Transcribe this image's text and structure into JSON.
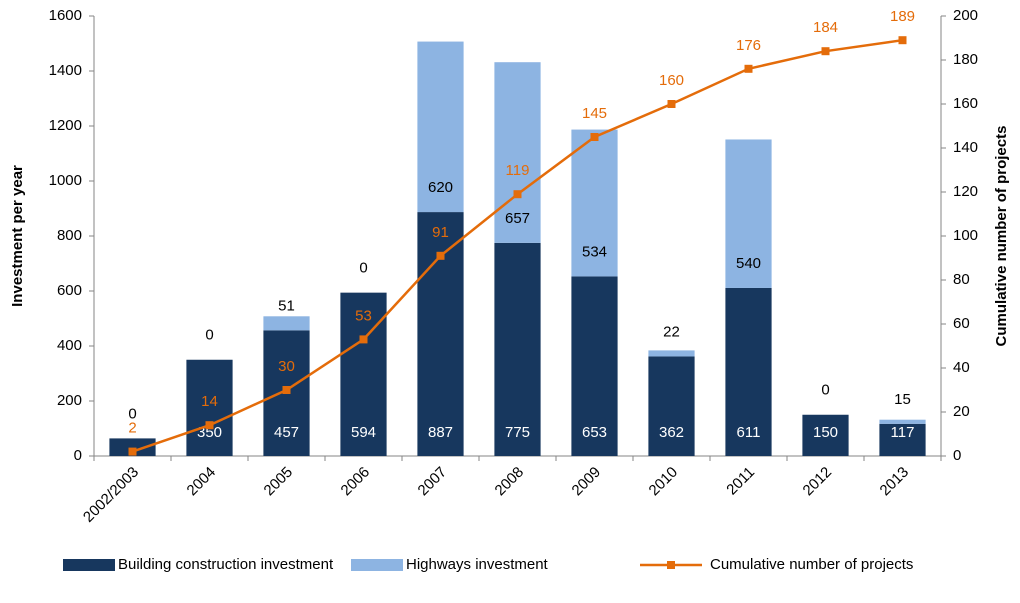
{
  "chart_data": {
    "type": "bar",
    "stacked": true,
    "categories": [
      "2002/2003",
      "2004",
      "2005",
      "2006",
      "2007",
      "2008",
      "2009",
      "2010",
      "2011",
      "2012",
      "2013"
    ],
    "series": [
      {
        "name": "Building construction investment",
        "color": "#17375e",
        "values": [
          64,
          350,
          457,
          594,
          887,
          775,
          653,
          362,
          611,
          150,
          117
        ]
      },
      {
        "name": "Highways investment",
        "color": "#8db4e2",
        "values": [
          0,
          0,
          51,
          0,
          620,
          657,
          534,
          22,
          540,
          0,
          15
        ]
      },
      {
        "name": "Cumulative number of projects",
        "color": "#e46c0a",
        "type": "line",
        "axis": "y2",
        "values": [
          2,
          14,
          30,
          53,
          91,
          119,
          145,
          160,
          176,
          184,
          189
        ]
      }
    ],
    "ylabel": "Investment per year",
    "y2label": "Cumulative number of projects",
    "ylim": [
      0,
      1600
    ],
    "yticks": [
      0,
      200,
      400,
      600,
      800,
      1000,
      1200,
      1400,
      1600
    ],
    "y2lim": [
      0,
      200
    ],
    "y2ticks": [
      0,
      20,
      40,
      60,
      80,
      100,
      120,
      140,
      160,
      180,
      200
    ],
    "legend": "bottom"
  }
}
